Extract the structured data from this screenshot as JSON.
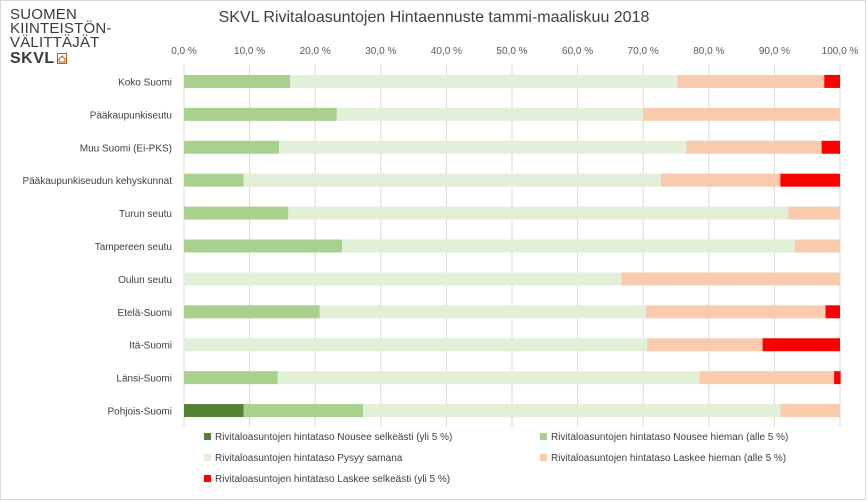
{
  "logo": {
    "line1": "SUOMEN",
    "line2": "KIINTEISTÖN-",
    "line3": "VÄLITTÄJÄT",
    "line4": "SKVL"
  },
  "chart_data": {
    "type": "bar",
    "orientation": "horizontal",
    "stacked": true,
    "title": "SKVL Rivitaloasuntojen Hintaennuste tammi-maaliskuu 2018",
    "xlabel": "",
    "ylabel": "",
    "xlim": [
      0,
      100
    ],
    "x_ticks": [
      "0,0 %",
      "10,0 %",
      "20,0 %",
      "30,0 %",
      "40,0 %",
      "50,0 %",
      "60,0 %",
      "70,0 %",
      "80,0 %",
      "90,0 %",
      "100,0 %"
    ],
    "x_axis_position": "top",
    "grid": true,
    "legend_position": "bottom",
    "categories": [
      "Koko Suomi",
      "Pääkaupunkiseutu",
      "Muu Suomi (Ei-PKS)",
      "Pääkaupunkiseudun kehyskunnat",
      "Turun seutu",
      "Tampereen seutu",
      "Oulun seutu",
      "Etelä-Suomi",
      "Itä-Suomi",
      "Länsi-Suomi",
      "Pohjois-Suomi"
    ],
    "series": [
      {
        "name": "Rivitaloasuntojen hintataso Nousee selkeästi (yli 5 %)",
        "color": "#548235",
        "values": [
          0,
          0,
          0,
          0,
          0,
          0,
          0,
          0,
          0,
          0,
          9.1
        ]
      },
      {
        "name": "Rivitaloasuntojen hintataso Nousee hieman (alle 5 %)",
        "color": "#a9d18e",
        "values": [
          16.2,
          23.3,
          14.5,
          9.1,
          15.9,
          24.1,
          0,
          20.7,
          0,
          14.3,
          18.2
        ]
      },
      {
        "name": "Rivitaloasuntojen hintataso Pysyy samana",
        "color": "#e2f0d9",
        "values": [
          59.0,
          46.7,
          62.1,
          63.6,
          76.2,
          69.0,
          66.7,
          49.7,
          70.6,
          64.3,
          63.6
        ]
      },
      {
        "name": "Rivitaloasuntojen hintataso Laskee hieman (alle 5 %)",
        "color": "#f8cbad",
        "values": [
          22.4,
          30.0,
          20.6,
          18.2,
          7.9,
          6.9,
          33.3,
          27.4,
          17.6,
          20.5,
          9.1
        ]
      },
      {
        "name": "Rivitaloasuntojen hintataso Laskee selkeästi (yli 5 %)",
        "color": "#ff0000",
        "values": [
          2.4,
          0,
          2.8,
          9.1,
          0,
          0,
          0,
          2.2,
          11.8,
          1.0,
          0
        ]
      }
    ]
  }
}
